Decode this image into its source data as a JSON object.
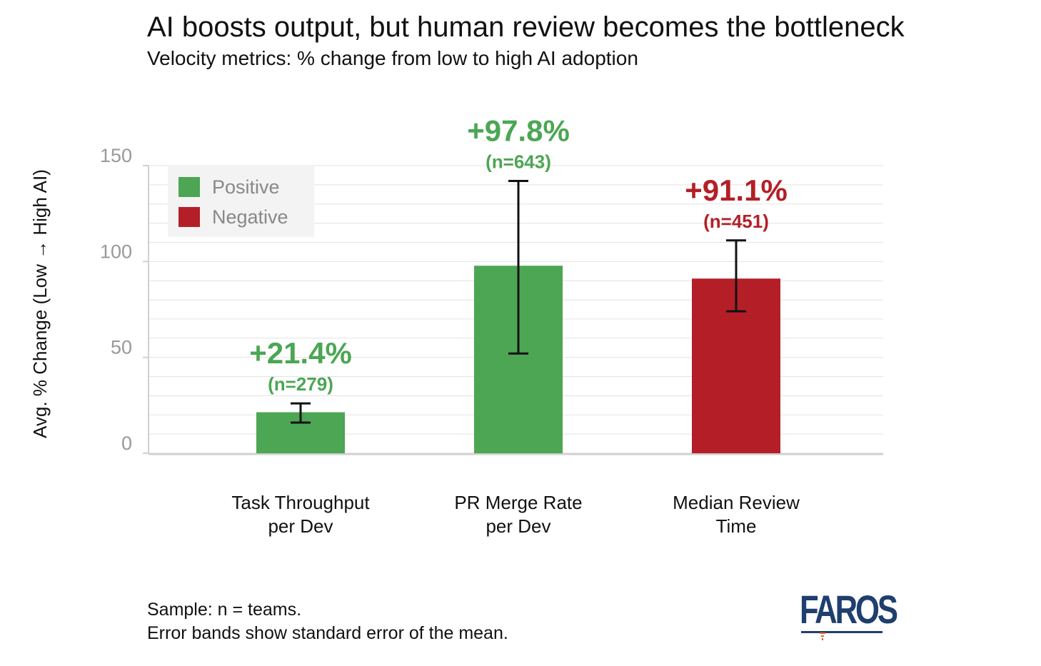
{
  "header": {
    "title": "AI boosts output, but human review becomes the bottleneck",
    "subtitle": "Velocity metrics: % change from low to high AI adoption"
  },
  "footnote": {
    "line1": "Sample: n = teams.",
    "line2": "Error bands show standard error of the mean."
  },
  "logo": {
    "text": "FAROS"
  },
  "colors": {
    "positive": "#4ca654",
    "negative": "#b41f27",
    "grid": "#e3e3e3",
    "axis": "#d0d0d0",
    "tick_label": "#999999"
  },
  "chart_data": {
    "type": "bar",
    "title": "AI boosts output, but human review becomes the bottleneck",
    "subtitle": "Velocity metrics: % change from low to high AI adoption",
    "ylabel": "Avg. % Change (Low → High AI)",
    "xlabel": "",
    "ylim": [
      0,
      150
    ],
    "yticks": [
      0,
      50,
      100,
      150
    ],
    "grid": true,
    "legend": {
      "placement": "top-left",
      "entries": [
        {
          "label": "Positive",
          "color": "#4ca654"
        },
        {
          "label": "Negative",
          "color": "#b41f27"
        }
      ]
    },
    "categories": [
      [
        "Task Throughput",
        "per Dev"
      ],
      [
        "PR Merge Rate",
        "per Dev"
      ],
      [
        "Median Review",
        "Time"
      ]
    ],
    "values": [
      21.4,
      97.8,
      91.1
    ],
    "error_low": [
      16,
      52,
      74
    ],
    "error_high": [
      26,
      142,
      111
    ],
    "sentiment": [
      "Positive",
      "Positive",
      "Negative"
    ],
    "value_labels": [
      "+21.4%",
      "+97.8%",
      "+91.1%"
    ],
    "n_labels": [
      "(n=279)",
      "(n=643)",
      "(n=451)"
    ]
  }
}
